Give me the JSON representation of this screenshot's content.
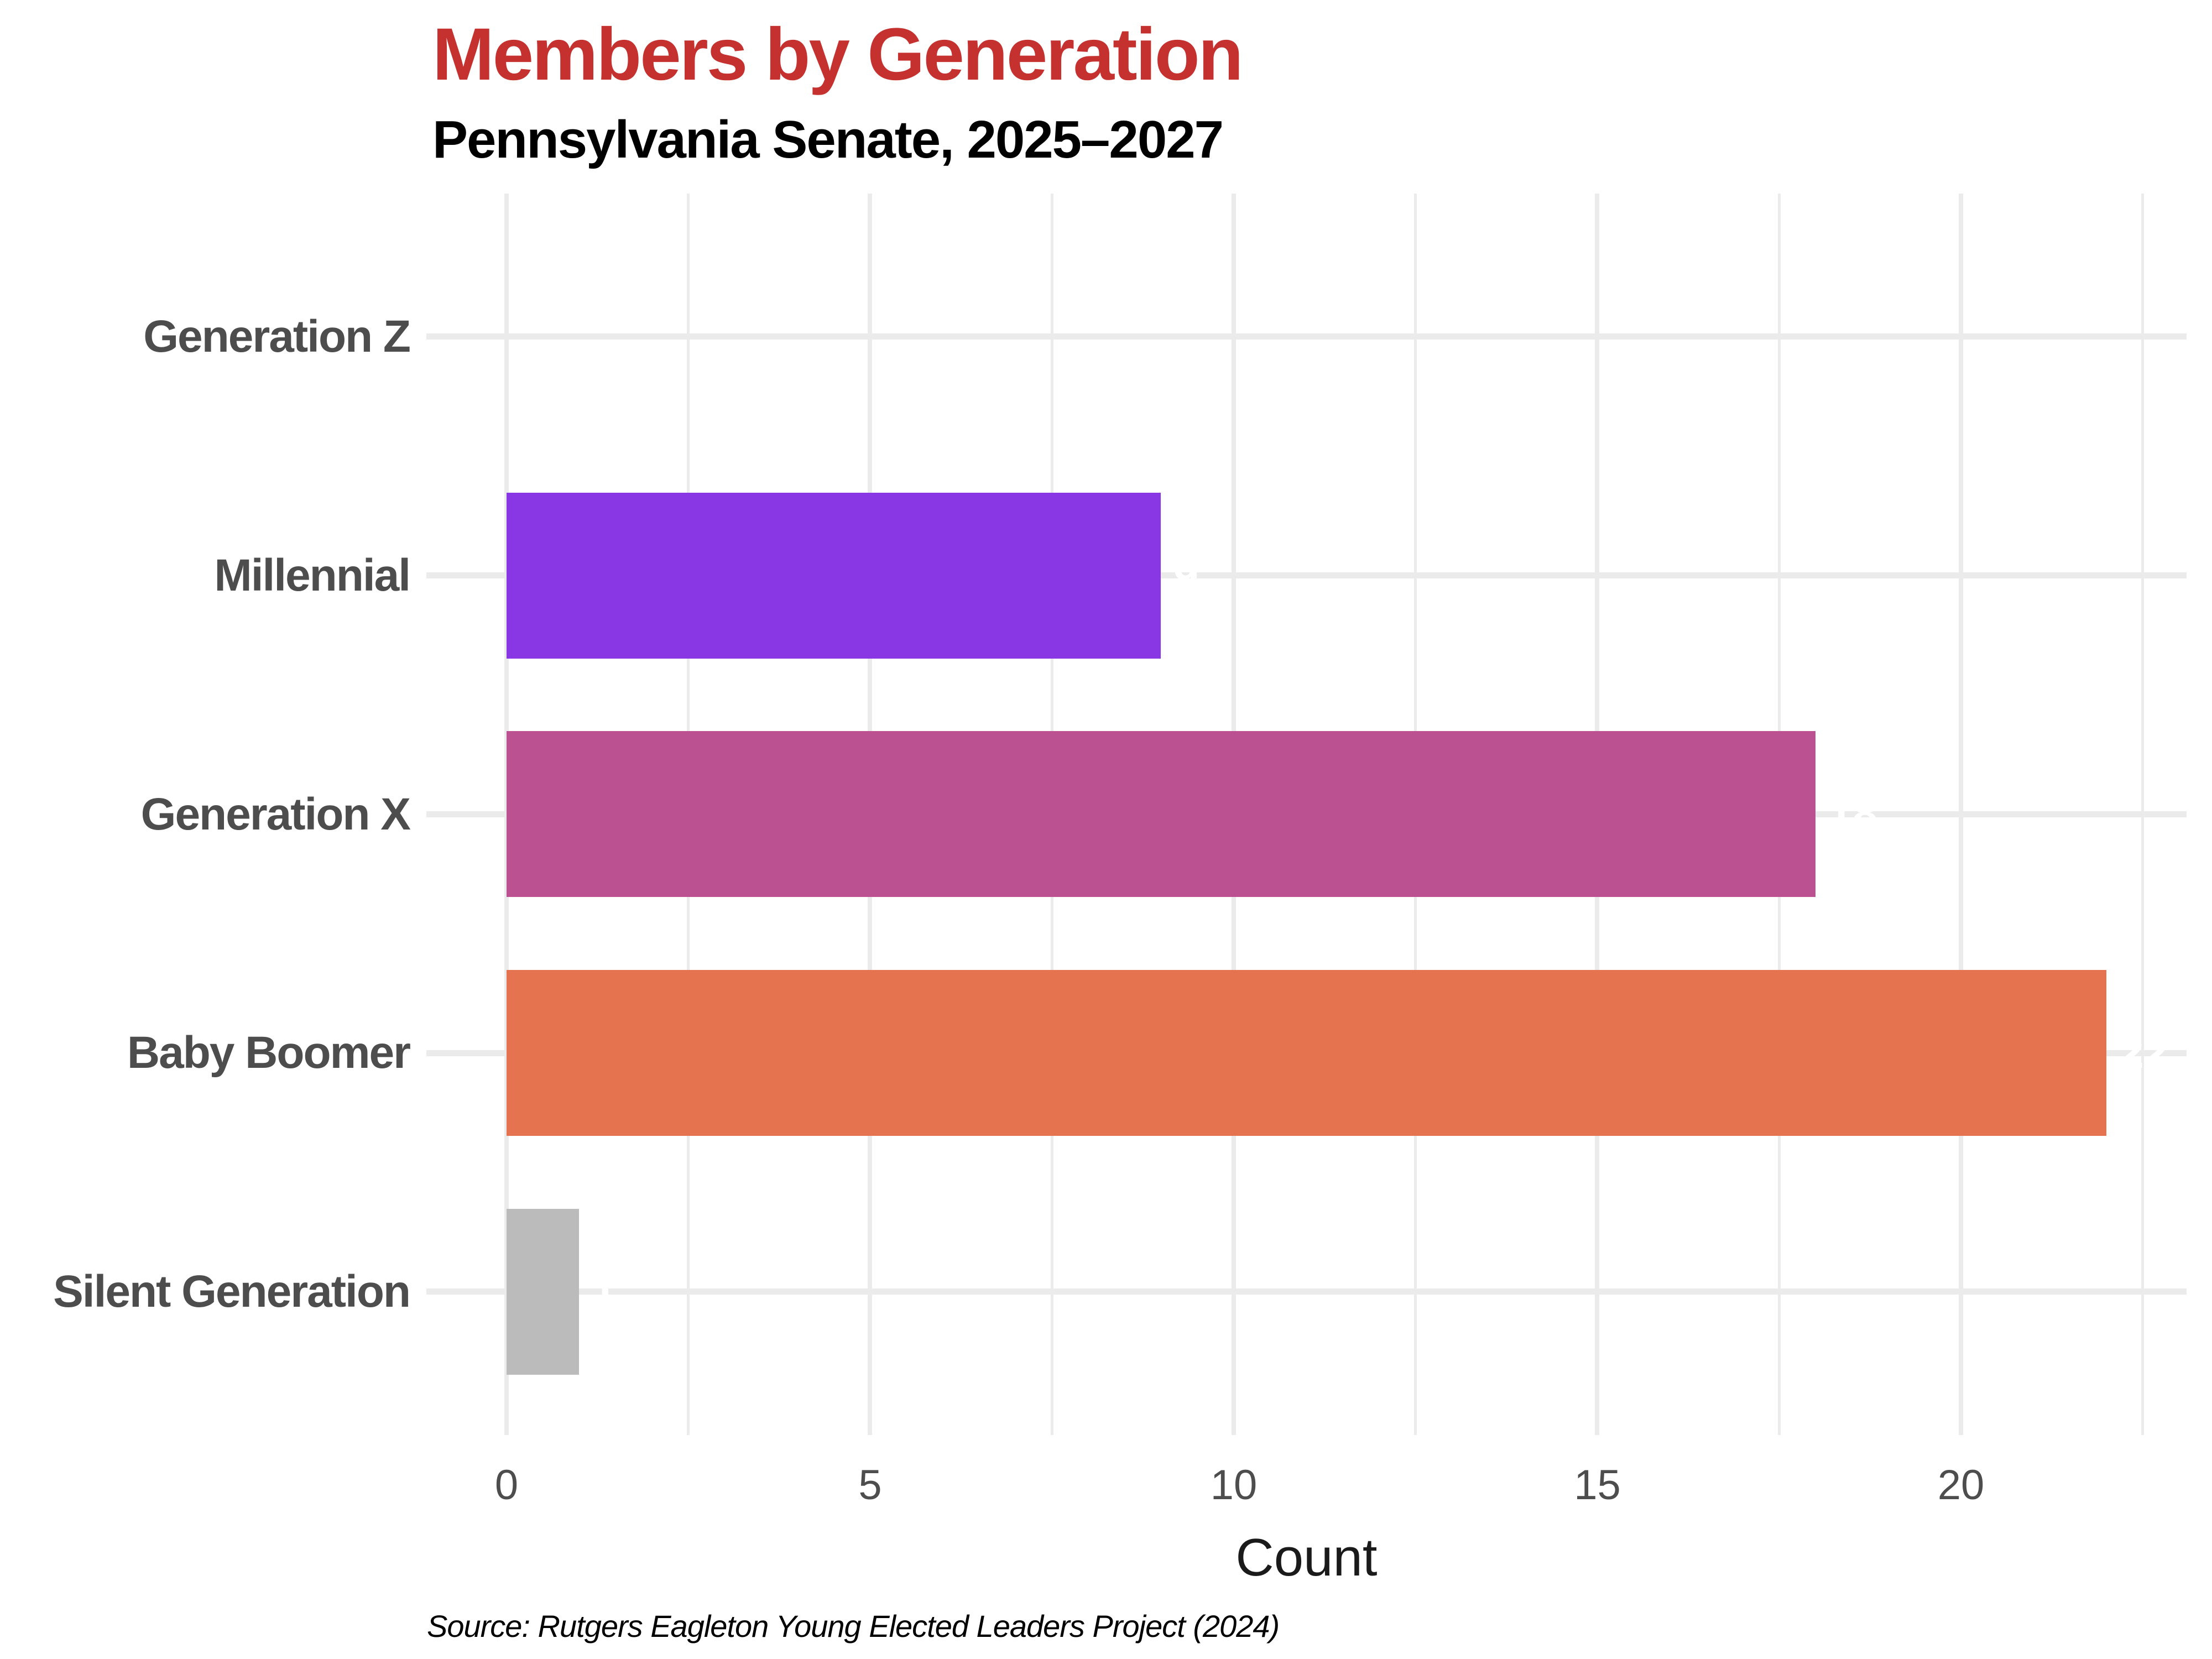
{
  "chart_data": {
    "type": "bar",
    "orientation": "horizontal",
    "title": "Members by Generation",
    "subtitle": "Pennsylvania Senate, 2025–2027",
    "caption": "Source: Rutgers Eagleton Young Elected Leaders Project (2024)",
    "xlabel": "Count",
    "categories": [
      "Generation Z",
      "Millennial",
      "Generation X",
      "Baby Boomer",
      "Silent Generation"
    ],
    "values": [
      0,
      9,
      18,
      22,
      1
    ],
    "bar_labels": [
      "",
      "9",
      "18",
      "22",
      "1"
    ],
    "bar_colors": [
      null,
      "#8936E4",
      "#BC5191",
      "#E6734F",
      "#BBBBBB"
    ],
    "bar_label_color": "#FFFFFF",
    "x_ticks": [
      0,
      5,
      10,
      15,
      20
    ],
    "x_minor_ticks": [
      2.5,
      7.5,
      12.5,
      17.5,
      22.5
    ],
    "xlim": [
      -1.1,
      23.1
    ],
    "grid": "both",
    "legend": "none"
  },
  "theme": {
    "background_color": "#FFFFFF",
    "title_color": "#C4312F",
    "subtitle_color": "#000000",
    "category_label_color": "#4D4D4D",
    "tick_label_color": "#4D4D4D",
    "x_title_color": "#1A1A1A",
    "caption_color": "#000000",
    "gridline_color": "#EBEBEB"
  }
}
